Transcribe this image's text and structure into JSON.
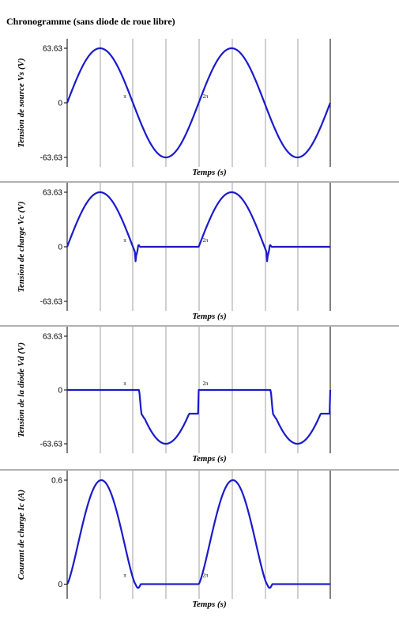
{
  "title": "Chronogramme (sans diode de roue libre)",
  "colors": {
    "trace": "#1a1acc",
    "grid": "#888888",
    "axis": "#000000"
  },
  "chart_data": [
    {
      "type": "line",
      "ylabel": "Tension de source Vs (V)",
      "xlabel": "Temps (s)",
      "y_ticks": [
        "63.63",
        "0",
        "-63.63"
      ],
      "ylim": [
        -63.63,
        63.63
      ],
      "annotations": [
        "π",
        "2π"
      ],
      "grid": true,
      "series": [
        {
          "waveform": "sine",
          "period_fraction": 0.5,
          "amplitude": 63.63
        }
      ]
    },
    {
      "type": "line",
      "ylabel": "Tension de charge Vc (V)",
      "xlabel": "Temps (s)",
      "y_ticks": [
        "63.63",
        "0",
        "-63.63"
      ],
      "ylim": [
        -63.63,
        63.63
      ],
      "annotations": [
        "π",
        "2π"
      ],
      "grid": true,
      "series": [
        {
          "waveform": "load_voltage",
          "amplitude": 63.63,
          "min_value": -19
        }
      ]
    },
    {
      "type": "line",
      "ylabel": "Tension de la diode Vd (V)",
      "xlabel": "Temps (s)",
      "y_ticks": [
        "63.63",
        "0",
        "-63.63"
      ],
      "ylim": [
        -63.63,
        63.63
      ],
      "annotations": [
        "π",
        "2π"
      ],
      "grid": true,
      "series": [
        {
          "waveform": "diode_voltage",
          "amplitude": 63.63
        }
      ]
    },
    {
      "type": "line",
      "ylabel": "Courant de charge Ic (A)",
      "xlabel": "Temps (s)",
      "y_ticks": [
        "0.6",
        "0"
      ],
      "ylim": [
        -0.03,
        0.6
      ],
      "annotations": [
        "π",
        "2π"
      ],
      "grid": true,
      "series": [
        {
          "waveform": "load_current",
          "peak": 0.6
        }
      ]
    }
  ]
}
